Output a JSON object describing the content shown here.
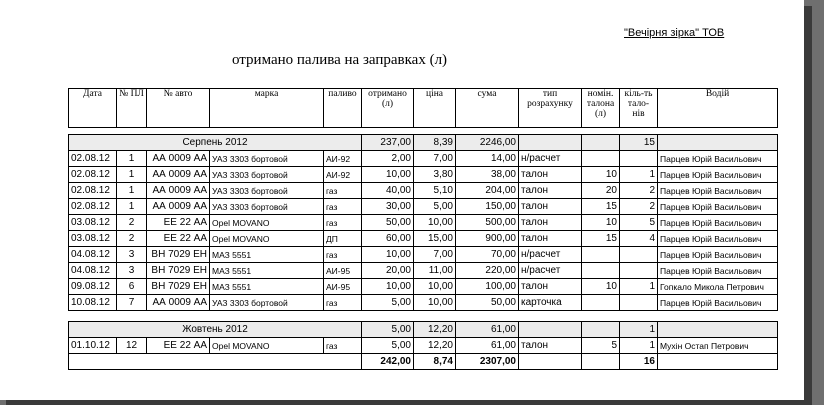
{
  "org": "\"Вечірня зірка\" ТОВ",
  "title": "отримано палива на заправках (л)",
  "headers": [
    "Дата",
    "№ ПЛ",
    "№ авто",
    "марка",
    "паливо",
    "отримано (л)",
    "ціна",
    "сума",
    "тип розрахунку",
    "номін. талона (л)",
    "кіль-ть тало-нів",
    "Водій"
  ],
  "groups": [
    {
      "label": "Серпень 2012",
      "received": "237,00",
      "price": "8,39",
      "sum": "2246,00",
      "coupons": "15",
      "rows": [
        [
          "02.08.12",
          "1",
          "АА 0009 АА",
          "УАЗ 3303 бортовой",
          "АИ-92",
          "2,00",
          "7,00",
          "14,00",
          "н/расчет",
          "",
          "",
          "Парцев Юрій Васильович"
        ],
        [
          "02.08.12",
          "1",
          "АА 0009 АА",
          "УАЗ 3303 бортовой",
          "АИ-92",
          "10,00",
          "3,80",
          "38,00",
          "талон",
          "10",
          "1",
          "Парцев Юрій Васильович"
        ],
        [
          "02.08.12",
          "1",
          "АА 0009 АА",
          "УАЗ 3303 бортовой",
          "газ",
          "40,00",
          "5,10",
          "204,00",
          "талон",
          "20",
          "2",
          "Парцев Юрій Васильович"
        ],
        [
          "02.08.12",
          "1",
          "АА 0009 АА",
          "УАЗ 3303 бортовой",
          "газ",
          "30,00",
          "5,00",
          "150,00",
          "талон",
          "15",
          "2",
          "Парцев Юрій Васильович"
        ],
        [
          "03.08.12",
          "2",
          "ЕЕ 22 АА",
          "Opel MOVANO",
          "газ",
          "50,00",
          "10,00",
          "500,00",
          "талон",
          "10",
          "5",
          "Парцев Юрій Васильович"
        ],
        [
          "03.08.12",
          "2",
          "ЕЕ 22 АА",
          "Opel MOVANO",
          "ДП",
          "60,00",
          "15,00",
          "900,00",
          "талон",
          "15",
          "4",
          "Парцев Юрій Васильович"
        ],
        [
          "04.08.12",
          "3",
          "ВН 7029 ЕН",
          "МАЗ 5551",
          "газ",
          "10,00",
          "7,00",
          "70,00",
          "н/расчет",
          "",
          "",
          "Парцев Юрій Васильович"
        ],
        [
          "04.08.12",
          "3",
          "ВН 7029 ЕН",
          "МАЗ 5551",
          "АИ-95",
          "20,00",
          "11,00",
          "220,00",
          "н/расчет",
          "",
          "",
          "Парцев Юрій Васильович"
        ],
        [
          "09.08.12",
          "6",
          "ВН 7029 ЕН",
          "МАЗ 5551",
          "АИ-95",
          "10,00",
          "10,00",
          "100,00",
          "талон",
          "10",
          "1",
          "Гопкало Микола Петрович"
        ],
        [
          "10.08.12",
          "7",
          "АА 0009 АА",
          "УАЗ 3303 бортовой",
          "газ",
          "5,00",
          "10,00",
          "50,00",
          "карточка",
          "",
          "",
          "Парцев Юрій Васильович"
        ]
      ]
    },
    {
      "label": "Жовтень 2012",
      "received": "5,00",
      "price": "12,20",
      "sum": "61,00",
      "coupons": "1",
      "rows": [
        [
          "01.10.12",
          "12",
          "ЕЕ 22 АА",
          "Opel MOVANO",
          "газ",
          "5,00",
          "12,20",
          "61,00",
          "талон",
          "5",
          "1",
          "Мухін Остап Петрович"
        ]
      ]
    }
  ],
  "total": {
    "received": "242,00",
    "price": "8,74",
    "sum": "2307,00",
    "coupons": "16"
  }
}
